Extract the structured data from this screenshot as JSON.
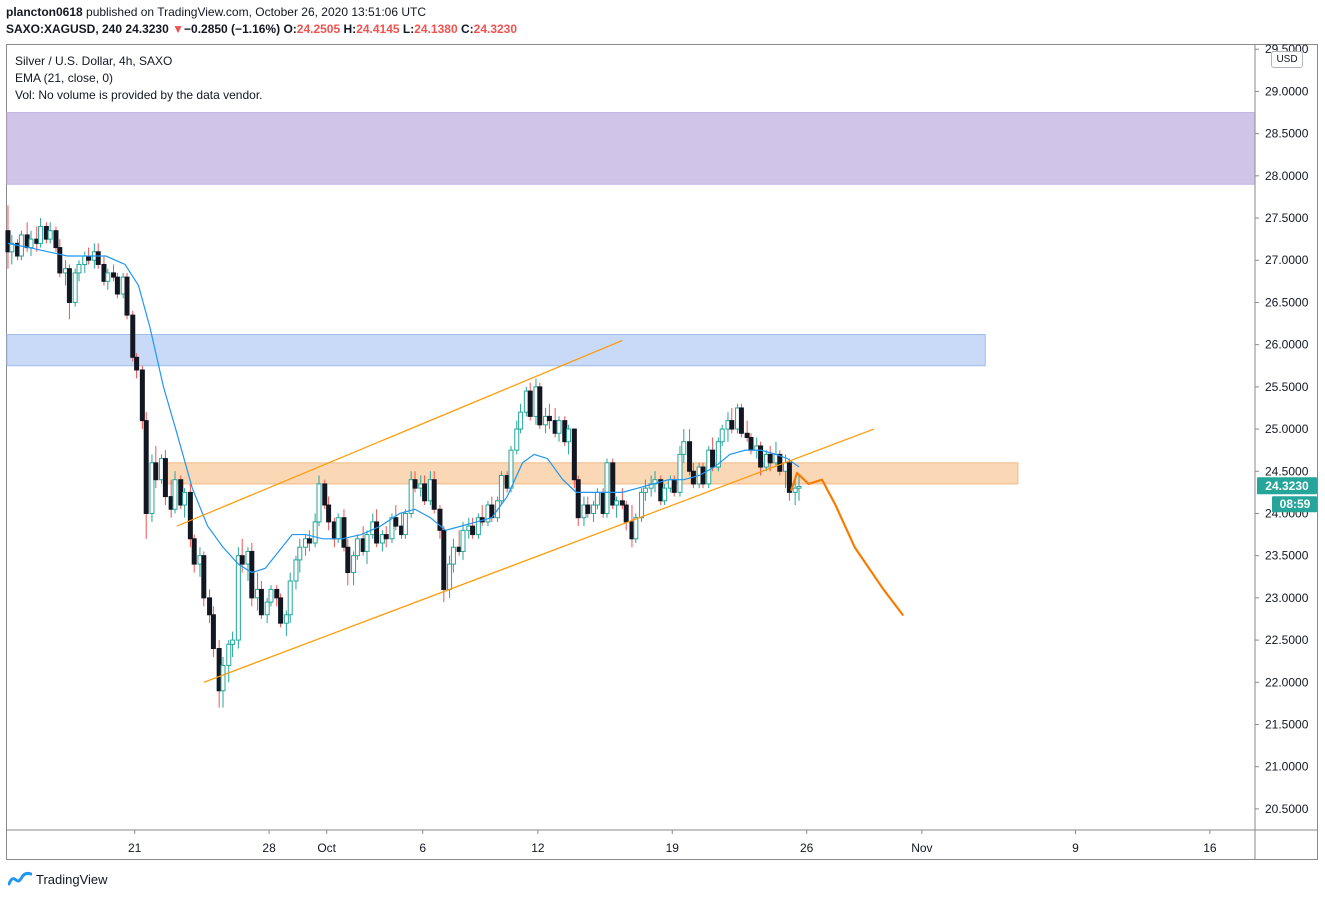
{
  "header": {
    "author": "plancton0618",
    "published": " published on TradingView.com, October 26, 2020 13:51:06 UTC"
  },
  "ohlc": {
    "symbol": "SAXO:XAGUSD, 240",
    "last": "24.3230",
    "arrow": "▼",
    "change": "−0.2850 (−1.16%)",
    "o_label": "O:",
    "o": "24.2505",
    "h_label": "H:",
    "h": "24.4145",
    "l_label": "L:",
    "l": "24.1380",
    "c_label": "C:",
    "c": "24.3230"
  },
  "legend": {
    "line1": "Silver / U.S. Dollar, 4h, SAXO",
    "line2": "EMA (21, close, 0)",
    "line3": "Vol: No volume is provided by the data vendor."
  },
  "currency": "USD",
  "footer": {
    "brand": "TradingView"
  },
  "colors": {
    "up": "#26a69a",
    "down": "#ef5350",
    "body": "#131722",
    "ema": "#2196f3",
    "channel": "#ff9800",
    "projection": "#f57c00",
    "zone_purple": "#d1c4e9",
    "zone_blue": "#c8daf8",
    "zone_orange": "#fad7b5",
    "badge": "#26a69a"
  },
  "chart_data": {
    "type": "candlestick",
    "y_ticks": [
      "20.5000",
      "21.0000",
      "21.5000",
      "22.0000",
      "22.5000",
      "23.0000",
      "23.5000",
      "24.0000",
      "24.5000",
      "25.0000",
      "25.5000",
      "26.0000",
      "26.5000",
      "27.0000",
      "27.5000",
      "28.0000",
      "28.5000",
      "29.0000",
      "29.5000"
    ],
    "y_range": [
      20.25,
      29.55
    ],
    "x_ticks": [
      "21",
      "28",
      "Oct",
      "6",
      "12",
      "19",
      "26",
      "Nov",
      "9",
      "16"
    ],
    "x_tick_days": [
      21,
      28,
      31,
      36,
      42,
      49,
      56,
      62,
      70,
      77
    ],
    "x_range_days": [
      14.35,
      79.35
    ],
    "last_price_label": "24.3230",
    "countdown_label": "08:59",
    "zones": [
      {
        "name": "purple",
        "from_day": 14.35,
        "to_day": 79.35,
        "low": 27.9,
        "high": 28.75
      },
      {
        "name": "blue",
        "from_day": 14.35,
        "to_day": 65.3,
        "low": 25.75,
        "high": 26.12
      },
      {
        "name": "orange",
        "from_day": 22.6,
        "to_day": 67.0,
        "low": 24.35,
        "high": 24.6
      }
    ],
    "channel_lines": [
      {
        "from": [
          23.2,
          23.85
        ],
        "to": [
          46.4,
          26.05
        ]
      },
      {
        "from": [
          24.6,
          22.0
        ],
        "to": [
          59.5,
          25.0
        ]
      }
    ],
    "projection": [
      [
        55.2,
        24.28
      ],
      [
        55.5,
        24.48
      ],
      [
        56.1,
        24.35
      ],
      [
        56.8,
        24.4
      ],
      [
        57.5,
        24.1
      ],
      [
        58.5,
        23.6
      ],
      [
        60.0,
        23.1
      ],
      [
        61.0,
        22.8
      ]
    ],
    "ema_21": [
      [
        14.4,
        27.2
      ],
      [
        15.5,
        27.15
      ],
      [
        16.5,
        27.1
      ],
      [
        17.5,
        27.05
      ],
      [
        18.5,
        27.05
      ],
      [
        19.5,
        27.05
      ],
      [
        20.5,
        26.95
      ],
      [
        21.2,
        26.7
      ],
      [
        21.8,
        26.2
      ],
      [
        22.5,
        25.5
      ],
      [
        23.2,
        24.95
      ],
      [
        24.0,
        24.3
      ],
      [
        24.8,
        23.85
      ],
      [
        25.6,
        23.6
      ],
      [
        26.4,
        23.4
      ],
      [
        27.1,
        23.3
      ],
      [
        27.8,
        23.35
      ],
      [
        28.5,
        23.55
      ],
      [
        29.2,
        23.75
      ],
      [
        29.9,
        23.75
      ],
      [
        30.8,
        23.7
      ],
      [
        31.8,
        23.7
      ],
      [
        32.8,
        23.75
      ],
      [
        33.8,
        23.85
      ],
      [
        34.8,
        24.0
      ],
      [
        35.6,
        24.05
      ],
      [
        36.4,
        23.95
      ],
      [
        37.2,
        23.8
      ],
      [
        38.0,
        23.85
      ],
      [
        38.8,
        23.9
      ],
      [
        39.6,
        23.95
      ],
      [
        40.4,
        24.2
      ],
      [
        41.2,
        24.6
      ],
      [
        41.8,
        24.7
      ],
      [
        42.5,
        24.65
      ],
      [
        43.3,
        24.4
      ],
      [
        44.0,
        24.25
      ],
      [
        44.8,
        24.25
      ],
      [
        45.6,
        24.25
      ],
      [
        46.4,
        24.25
      ],
      [
        47.2,
        24.3
      ],
      [
        48.0,
        24.35
      ],
      [
        48.8,
        24.4
      ],
      [
        49.6,
        24.4
      ],
      [
        50.4,
        24.45
      ],
      [
        51.2,
        24.55
      ],
      [
        52.0,
        24.7
      ],
      [
        52.8,
        24.75
      ],
      [
        53.6,
        24.75
      ],
      [
        54.4,
        24.7
      ],
      [
        55.0,
        24.65
      ],
      [
        55.6,
        24.55
      ]
    ],
    "candles": [
      [
        14.4,
        27.35,
        27.65,
        26.9,
        27.1
      ],
      [
        14.6,
        27.1,
        27.3,
        26.95,
        27.2
      ],
      [
        14.9,
        27.2,
        27.25,
        27.0,
        27.05
      ],
      [
        15.1,
        27.05,
        27.35,
        27.0,
        27.3
      ],
      [
        15.4,
        27.3,
        27.45,
        27.1,
        27.15
      ],
      [
        15.6,
        27.15,
        27.35,
        27.05,
        27.25
      ],
      [
        15.9,
        27.25,
        27.4,
        27.1,
        27.2
      ],
      [
        16.1,
        27.2,
        27.5,
        27.15,
        27.4
      ],
      [
        16.4,
        27.4,
        27.45,
        27.2,
        27.25
      ],
      [
        16.6,
        27.25,
        27.45,
        27.2,
        27.35
      ],
      [
        16.9,
        27.35,
        27.4,
        27.1,
        27.15
      ],
      [
        17.1,
        27.15,
        27.25,
        26.8,
        26.85
      ],
      [
        17.4,
        26.85,
        27.0,
        26.7,
        26.9
      ],
      [
        17.6,
        26.9,
        26.95,
        26.3,
        26.5
      ],
      [
        17.9,
        26.5,
        26.9,
        26.45,
        26.85
      ],
      [
        18.1,
        26.85,
        27.0,
        26.75,
        26.95
      ],
      [
        18.4,
        26.95,
        27.1,
        26.85,
        27.05
      ],
      [
        18.6,
        27.05,
        27.15,
        26.95,
        27.0
      ],
      [
        18.9,
        27.0,
        27.2,
        26.9,
        27.1
      ],
      [
        19.1,
        27.1,
        27.2,
        26.9,
        26.95
      ],
      [
        19.4,
        26.95,
        27.05,
        26.7,
        26.75
      ],
      [
        19.6,
        26.75,
        26.9,
        26.65,
        26.85
      ],
      [
        19.9,
        26.85,
        26.95,
        26.75,
        26.8
      ],
      [
        20.1,
        26.8,
        26.85,
        26.55,
        26.6
      ],
      [
        20.4,
        26.6,
        26.85,
        26.55,
        26.8
      ],
      [
        20.6,
        26.8,
        26.85,
        26.3,
        26.35
      ],
      [
        20.9,
        26.35,
        26.4,
        25.8,
        25.85
      ],
      [
        21.1,
        25.85,
        25.9,
        25.6,
        25.7
      ],
      [
        21.4,
        25.7,
        25.75,
        25.0,
        25.1
      ],
      [
        21.6,
        25.1,
        25.2,
        23.7,
        24.0
      ],
      [
        21.9,
        24.0,
        24.7,
        23.9,
        24.6
      ],
      [
        22.1,
        24.6,
        24.8,
        24.3,
        24.4
      ],
      [
        22.4,
        24.4,
        24.7,
        24.35,
        24.65
      ],
      [
        22.6,
        24.65,
        24.75,
        24.1,
        24.2
      ],
      [
        22.9,
        24.2,
        24.4,
        23.95,
        24.05
      ],
      [
        23.1,
        24.05,
        24.5,
        24.0,
        24.4
      ],
      [
        23.4,
        24.4,
        24.45,
        24.05,
        24.1
      ],
      [
        23.6,
        24.1,
        24.3,
        23.95,
        24.25
      ],
      [
        23.9,
        24.25,
        24.35,
        23.6,
        23.7
      ],
      [
        24.1,
        23.7,
        23.75,
        23.3,
        23.4
      ],
      [
        24.4,
        23.4,
        23.6,
        23.25,
        23.5
      ],
      [
        24.6,
        23.5,
        23.55,
        22.9,
        23.0
      ],
      [
        24.9,
        23.0,
        23.1,
        22.7,
        22.8
      ],
      [
        25.1,
        22.8,
        22.9,
        22.3,
        22.4
      ],
      [
        25.4,
        22.4,
        22.5,
        21.7,
        21.9
      ],
      [
        25.6,
        21.9,
        22.3,
        21.7,
        22.2
      ],
      [
        25.9,
        22.2,
        22.5,
        22.0,
        22.45
      ],
      [
        26.1,
        22.45,
        22.6,
        22.3,
        22.5
      ],
      [
        26.4,
        22.5,
        23.6,
        22.4,
        23.5
      ],
      [
        26.6,
        23.5,
        23.7,
        23.3,
        23.4
      ],
      [
        26.9,
        23.4,
        23.6,
        23.2,
        23.55
      ],
      [
        27.1,
        23.55,
        23.65,
        22.9,
        23.0
      ],
      [
        27.4,
        23.0,
        23.3,
        22.85,
        23.1
      ],
      [
        27.6,
        23.1,
        23.2,
        22.75,
        22.8
      ],
      [
        27.9,
        22.8,
        23.0,
        22.7,
        22.95
      ],
      [
        28.1,
        22.95,
        23.15,
        22.9,
        23.1
      ],
      [
        28.4,
        23.1,
        23.15,
        22.9,
        23.0
      ],
      [
        28.6,
        23.0,
        23.05,
        22.65,
        22.7
      ],
      [
        28.9,
        22.7,
        22.85,
        22.55,
        22.8
      ],
      [
        29.1,
        22.8,
        23.3,
        22.7,
        23.2
      ],
      [
        29.4,
        23.2,
        23.5,
        23.1,
        23.45
      ],
      [
        29.6,
        23.45,
        23.7,
        23.3,
        23.6
      ],
      [
        29.9,
        23.6,
        23.75,
        23.5,
        23.7
      ],
      [
        30.1,
        23.7,
        23.8,
        23.55,
        23.65
      ],
      [
        30.4,
        23.65,
        24.0,
        23.6,
        23.9
      ],
      [
        30.6,
        23.9,
        24.45,
        23.85,
        24.35
      ],
      [
        30.9,
        24.35,
        24.4,
        24.05,
        24.1
      ],
      [
        31.1,
        24.1,
        24.2,
        23.8,
        23.9
      ],
      [
        31.4,
        23.9,
        23.95,
        23.6,
        23.7
      ],
      [
        31.6,
        23.7,
        24.0,
        23.65,
        23.95
      ],
      [
        31.9,
        23.95,
        24.05,
        23.55,
        23.6
      ],
      [
        32.1,
        23.6,
        23.7,
        23.15,
        23.3
      ],
      [
        32.4,
        23.3,
        23.55,
        23.15,
        23.5
      ],
      [
        32.6,
        23.5,
        23.75,
        23.45,
        23.7
      ],
      [
        32.9,
        23.7,
        23.85,
        23.5,
        23.55
      ],
      [
        33.1,
        23.55,
        23.8,
        23.4,
        23.75
      ],
      [
        33.4,
        23.75,
        24.0,
        23.7,
        23.9
      ],
      [
        33.6,
        23.9,
        24.05,
        23.6,
        23.65
      ],
      [
        33.9,
        23.65,
        23.8,
        23.55,
        23.75
      ],
      [
        34.1,
        23.75,
        23.85,
        23.6,
        23.7
      ],
      [
        34.4,
        23.7,
        24.0,
        23.65,
        23.95
      ],
      [
        34.6,
        23.95,
        24.1,
        23.8,
        23.85
      ],
      [
        34.9,
        23.85,
        24.0,
        23.7,
        23.75
      ],
      [
        35.1,
        23.75,
        24.05,
        23.7,
        24.0
      ],
      [
        35.4,
        24.0,
        24.5,
        23.95,
        24.4
      ],
      [
        35.6,
        24.4,
        24.5,
        24.25,
        24.3
      ],
      [
        35.9,
        24.3,
        24.45,
        24.2,
        24.35
      ],
      [
        36.1,
        24.35,
        24.45,
        24.1,
        24.15
      ],
      [
        36.4,
        24.15,
        24.5,
        24.1,
        24.4
      ],
      [
        36.6,
        24.4,
        24.5,
        24.0,
        24.05
      ],
      [
        36.9,
        24.05,
        24.1,
        23.7,
        23.8
      ],
      [
        37.1,
        23.8,
        23.85,
        22.95,
        23.1
      ],
      [
        37.4,
        23.1,
        23.5,
        23.0,
        23.4
      ],
      [
        37.6,
        23.4,
        23.7,
        23.3,
        23.6
      ],
      [
        37.9,
        23.6,
        23.8,
        23.5,
        23.55
      ],
      [
        38.1,
        23.55,
        23.9,
        23.45,
        23.8
      ],
      [
        38.4,
        23.8,
        23.95,
        23.7,
        23.85
      ],
      [
        38.6,
        23.85,
        23.95,
        23.7,
        23.75
      ],
      [
        38.9,
        23.75,
        24.0,
        23.7,
        23.95
      ],
      [
        39.1,
        23.95,
        24.1,
        23.85,
        23.9
      ],
      [
        39.4,
        23.9,
        24.15,
        23.85,
        24.1
      ],
      [
        39.6,
        24.1,
        24.2,
        23.9,
        23.95
      ],
      [
        39.9,
        23.95,
        24.2,
        23.9,
        24.15
      ],
      [
        40.1,
        24.15,
        24.5,
        24.1,
        24.45
      ],
      [
        40.4,
        24.45,
        24.5,
        24.25,
        24.3
      ],
      [
        40.6,
        24.3,
        24.8,
        24.25,
        24.75
      ],
      [
        40.9,
        24.75,
        25.1,
        24.7,
        25.0
      ],
      [
        41.1,
        25.0,
        25.3,
        24.95,
        25.2
      ],
      [
        41.4,
        25.2,
        25.5,
        25.15,
        25.45
      ],
      [
        41.6,
        25.45,
        25.55,
        25.1,
        25.15
      ],
      [
        41.9,
        25.15,
        25.6,
        25.05,
        25.5
      ],
      [
        42.1,
        25.5,
        25.55,
        25.0,
        25.05
      ],
      [
        42.4,
        25.05,
        25.25,
        24.95,
        25.15
      ],
      [
        42.6,
        25.15,
        25.3,
        25.0,
        25.1
      ],
      [
        42.9,
        25.1,
        25.25,
        24.9,
        24.95
      ],
      [
        43.1,
        24.95,
        25.15,
        24.85,
        25.1
      ],
      [
        43.4,
        25.1,
        25.15,
        24.8,
        24.85
      ],
      [
        43.6,
        24.85,
        25.05,
        24.7,
        25.0
      ],
      [
        43.9,
        25.0,
        25.0,
        24.3,
        24.4
      ],
      [
        44.1,
        24.4,
        24.45,
        23.85,
        23.95
      ],
      [
        44.4,
        23.95,
        24.2,
        23.85,
        24.1
      ],
      [
        44.6,
        24.1,
        24.2,
        23.95,
        24.0
      ],
      [
        44.9,
        24.0,
        24.15,
        23.9,
        24.1
      ],
      [
        45.1,
        24.1,
        24.3,
        24.05,
        24.25
      ],
      [
        45.4,
        24.25,
        24.3,
        23.95,
        24.0
      ],
      [
        45.6,
        24.0,
        24.65,
        23.95,
        24.6
      ],
      [
        45.9,
        24.6,
        24.65,
        24.05,
        24.1
      ],
      [
        46.1,
        24.1,
        24.2,
        23.95,
        24.15
      ],
      [
        46.4,
        24.15,
        24.3,
        24.05,
        24.1
      ],
      [
        46.6,
        24.1,
        24.15,
        23.8,
        23.9
      ],
      [
        46.9,
        23.9,
        24.1,
        23.6,
        23.7
      ],
      [
        47.1,
        23.7,
        24.0,
        23.65,
        23.95
      ],
      [
        47.4,
        23.95,
        24.3,
        23.9,
        24.25
      ],
      [
        47.6,
        24.25,
        24.4,
        24.15,
        24.3
      ],
      [
        47.9,
        24.3,
        24.45,
        24.2,
        24.35
      ],
      [
        48.1,
        24.35,
        24.5,
        24.25,
        24.4
      ],
      [
        48.4,
        24.4,
        24.45,
        24.1,
        24.15
      ],
      [
        48.6,
        24.15,
        24.35,
        24.1,
        24.3
      ],
      [
        48.9,
        24.3,
        24.45,
        24.25,
        24.4
      ],
      [
        49.1,
        24.4,
        24.45,
        24.2,
        24.25
      ],
      [
        49.4,
        24.25,
        24.8,
        24.2,
        24.7
      ],
      [
        49.6,
        24.7,
        25.0,
        24.6,
        24.85
      ],
      [
        49.9,
        24.85,
        25.0,
        24.45,
        24.5
      ],
      [
        50.1,
        24.5,
        24.6,
        24.3,
        24.35
      ],
      [
        50.4,
        24.35,
        24.6,
        24.3,
        24.55
      ],
      [
        50.6,
        24.55,
        24.6,
        24.3,
        24.35
      ],
      [
        50.9,
        24.35,
        24.8,
        24.3,
        24.75
      ],
      [
        51.1,
        24.75,
        24.9,
        24.5,
        24.55
      ],
      [
        51.4,
        24.55,
        24.9,
        24.5,
        24.85
      ],
      [
        51.6,
        24.85,
        25.05,
        24.8,
        25.0
      ],
      [
        51.9,
        25.0,
        25.2,
        24.85,
        25.1
      ],
      [
        52.1,
        25.1,
        25.25,
        24.95,
        25.0
      ],
      [
        52.4,
        25.0,
        25.3,
        24.95,
        25.25
      ],
      [
        52.6,
        25.25,
        25.3,
        24.9,
        24.95
      ],
      [
        52.9,
        24.95,
        25.1,
        24.85,
        24.9
      ],
      [
        53.1,
        24.9,
        24.95,
        24.7,
        24.75
      ],
      [
        53.4,
        24.75,
        24.9,
        24.65,
        24.8
      ],
      [
        53.6,
        24.8,
        24.85,
        24.45,
        24.55
      ],
      [
        53.9,
        24.55,
        24.75,
        24.5,
        24.7
      ],
      [
        54.1,
        24.7,
        24.8,
        24.5,
        24.6
      ],
      [
        54.4,
        24.6,
        24.85,
        24.55,
        24.7
      ],
      [
        54.6,
        24.7,
        24.75,
        24.45,
        24.5
      ],
      [
        54.9,
        24.5,
        24.7,
        24.3,
        24.6
      ],
      [
        55.1,
        24.6,
        24.65,
        24.15,
        24.25
      ],
      [
        55.4,
        24.25,
        24.4,
        24.1,
        24.3
      ],
      [
        55.6,
        24.3,
        24.45,
        24.15,
        24.32
      ]
    ]
  }
}
